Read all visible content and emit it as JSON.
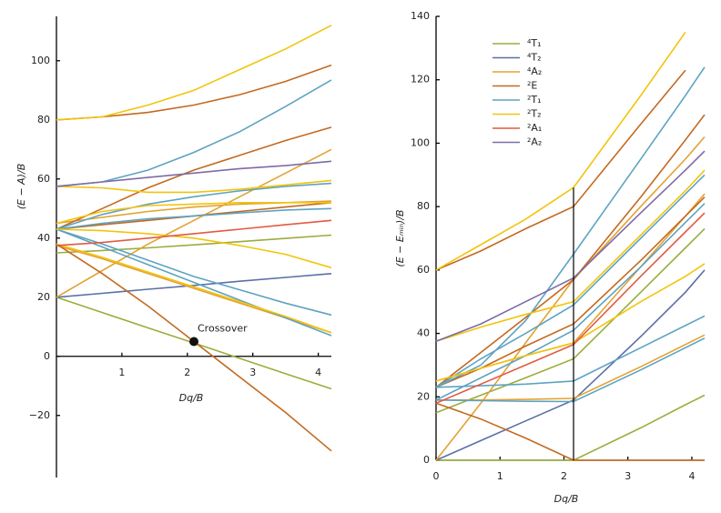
{
  "chart_data": [
    {
      "type": "line",
      "x_label": "Dq/B",
      "y_label": "(E − A)/B",
      "x": [
        0,
        0.7,
        1.4,
        2.1,
        2.8,
        3.5,
        4.2
      ],
      "xlim": [
        0,
        4.2
      ],
      "ylim": [
        -41,
        115
      ],
      "xticks": [
        1,
        2,
        3,
        4
      ],
      "yticks": [
        {
          "value": -20,
          "label": "−20"
        },
        0,
        20,
        40,
        60,
        80,
        100
      ],
      "xaxis_at_zero": true,
      "annotation": {
        "text": "Crossover",
        "x": 2.1,
        "y": 5
      },
      "series": [
        {
          "color": "#9aad3c",
          "lines": [
            [
              20,
              14.8,
              9.6,
              4.5,
              -0.7,
              -5.9,
              -11
            ],
            [
              35,
              35.8,
              36.7,
              37.7,
              38.8,
              39.9,
              41
            ]
          ]
        },
        {
          "color": "#5b6fa6",
          "lines": [
            [
              20,
              21.3,
              22.7,
              24,
              25.4,
              26.7,
              28
            ]
          ]
        },
        {
          "color": "#e3a232",
          "lines": [
            [
              20,
              29,
              38,
              46,
              54,
              62,
              70
            ],
            [
              37.5,
              33,
              28,
              23,
              18,
              13,
              8
            ],
            [
              45,
              47,
              49,
              50.5,
              51.5,
              52,
              52.5
            ]
          ]
        },
        {
          "color": "#c4691f",
          "lines": [
            [
              38,
              28,
              17,
              5,
              -7,
              -19,
              -32
            ],
            [
              43,
              50,
              57,
              63,
              68,
              73,
              77.5
            ],
            [
              80,
              81,
              82.5,
              85,
              88.5,
              93,
              98.5
            ],
            [
              43,
              44.5,
              46,
              47.5,
              49,
              50.5,
              52
            ]
          ]
        },
        {
          "color": "#5ea3c1",
          "lines": [
            [
              57.5,
              59,
              63,
              69,
              76,
              84.5,
              93.5
            ],
            [
              43,
              38,
              32.5,
              27,
              22.5,
              18,
              14
            ],
            [
              43,
              37,
              31,
              25,
              19,
              13,
              7
            ],
            [
              43,
              45,
              46.5,
              47.5,
              48.5,
              49.5,
              50
            ],
            [
              43,
              48,
              51.5,
              54,
              56,
              57.5,
              58.5
            ]
          ]
        },
        {
          "color": "#f2c40c",
          "lines": [
            [
              80,
              81,
              85,
              90,
              97,
              104,
              112
            ],
            [
              57.5,
              57,
              55.5,
              55.5,
              56.5,
              58,
              59.5
            ],
            [
              43,
              42.5,
              41.5,
              40,
              37.5,
              34.5,
              30
            ],
            [
              45,
              49,
              51,
              51.5,
              52,
              52,
              52
            ],
            [
              38,
              33.5,
              28.5,
              23.5,
              18.5,
              13.5,
              8
            ]
          ]
        },
        {
          "color": "#e25a41",
          "lines": [
            [
              37.5,
              38.5,
              40,
              41.5,
              43,
              44.5,
              46
            ]
          ]
        },
        {
          "color": "#7e6ba6",
          "lines": [
            [
              57.5,
              59,
              60.5,
              62,
              63.5,
              64.5,
              66
            ]
          ]
        }
      ]
    },
    {
      "type": "line",
      "x_label": "Dq/B",
      "y_label": "(E − Eₘᵢₙ)/B",
      "x": [
        0,
        0.7,
        1.4,
        2.15,
        3.2,
        3.9,
        4.2
      ],
      "xlim": [
        0,
        4.2
      ],
      "ylim": [
        0,
        140
      ],
      "xticks": [
        0,
        1,
        2,
        3,
        4
      ],
      "yticks": [
        0,
        20,
        40,
        60,
        80,
        100,
        120,
        140
      ],
      "xaxis_at_zero": false,
      "crossover_x": 2.15,
      "legend": "upper left",
      "series": [
        {
          "name": "⁴T₁",
          "color": "#9aad3c",
          "lines": [
            [
              0,
              0,
              0,
              0,
              10.2,
              17.5,
              20.5
            ],
            [
              15,
              20.5,
              26,
              32,
              53,
              67,
              73
            ]
          ]
        },
        {
          "name": "⁴T₂",
          "color": "#5b6fa6",
          "lines": [
            [
              0,
              6.2,
              12.4,
              19,
              39,
              53,
              60
            ]
          ]
        },
        {
          "name": "⁴A₂",
          "color": "#e3a232",
          "lines": [
            [
              0,
              18,
              37,
              57,
              80,
              95,
              102
            ],
            [
              25,
              29,
              33,
              37,
              61,
              77,
              84
            ],
            [
              19,
              19,
              19.2,
              19.5,
              29.5,
              36.5,
              39.5
            ]
          ]
        },
        {
          "name": "²E",
          "color": "#c4691f",
          "lines": [
            [
              18,
              13,
              7,
              0,
              0,
              0,
              0
            ],
            [
              23,
              34,
              45,
              57,
              83,
              101,
              109
            ],
            [
              60,
              66,
              73,
              80,
              106,
              123,
              null
            ],
            [
              23,
              29,
              36,
              43,
              63,
              77,
              83
            ]
          ]
        },
        {
          "name": "²T₁",
          "color": "#5ea3c1",
          "lines": [
            [
              23,
              30,
              44,
              65,
              95,
              115,
              124
            ],
            [
              23,
              23.5,
              24,
              25,
              35.5,
              42.5,
              45.5
            ],
            [
              23,
              32,
              40,
              49,
              70,
              84,
              90
            ],
            [
              19,
              26,
              33,
              41,
              61,
              75,
              81
            ],
            [
              19,
              18.8,
              18.6,
              18.5,
              28.5,
              35.5,
              38.5
            ]
          ]
        },
        {
          "name": "²T₂",
          "color": "#f2c40c",
          "lines": [
            [
              60,
              68,
              76,
              86,
              115,
              135,
              null
            ],
            [
              37.5,
              42,
              46,
              50,
              71,
              85,
              91.5
            ],
            [
              25,
              29,
              33,
              37,
              50,
              58,
              62
            ]
          ]
        },
        {
          "name": "²A₁",
          "color": "#e25a41",
          "lines": [
            [
              18,
              24,
              30,
              36.5,
              58,
              72,
              78
            ]
          ]
        },
        {
          "name": "²A₂",
          "color": "#7e6ba6",
          "lines": [
            [
              37.5,
              43,
              50,
              57.5,
              78,
              91.5,
              97.5
            ]
          ]
        }
      ]
    }
  ]
}
